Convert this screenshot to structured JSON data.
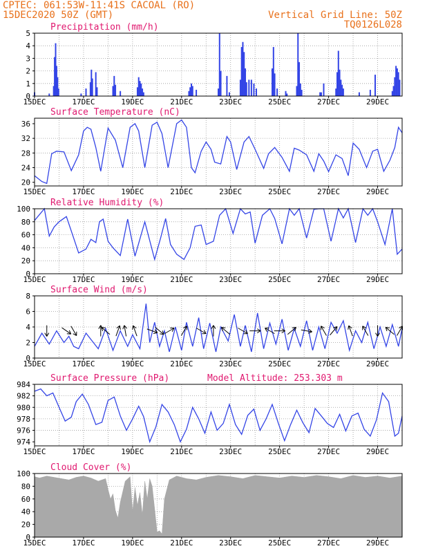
{
  "header": {
    "line1": "CPTEC:   061:53W-11:41S   CACOAL (RO)",
    "line2": "15DEC2020 50Z (GMT)",
    "right1": "Vertical Grid Line: 50Z",
    "right2": "TQ0126L028"
  },
  "colors": {
    "series": "#3344e6",
    "cloud": "#a9a9a9",
    "title": "#e0186f",
    "header": "#e8701a",
    "arrow": "#000000"
  },
  "x_tick_labels": [
    "15DEC",
    "17DEC",
    "19DEC",
    "21DEC",
    "23DEC",
    "25DEC",
    "27DEC",
    "29DEC"
  ],
  "chart_data": [
    {
      "type": "bar",
      "title": "Precipitation (mm/h)",
      "ylim": [
        0,
        5
      ],
      "yticks": [
        "0",
        "1",
        "2",
        "3",
        "4",
        "5"
      ],
      "x_unit": "day index from 15DEC",
      "events": [
        {
          "x": 0.0,
          "v": 0.3
        },
        {
          "x": 0.6,
          "v": 0.2
        },
        {
          "x": 0.78,
          "v": 0.8
        },
        {
          "x": 0.82,
          "v": 3.1
        },
        {
          "x": 0.86,
          "v": 4.2
        },
        {
          "x": 0.9,
          "v": 2.4
        },
        {
          "x": 0.94,
          "v": 1.5
        },
        {
          "x": 0.98,
          "v": 0.6
        },
        {
          "x": 1.9,
          "v": 0.2
        },
        {
          "x": 2.1,
          "v": 0.6
        },
        {
          "x": 2.28,
          "v": 1.1
        },
        {
          "x": 2.32,
          "v": 2.1
        },
        {
          "x": 2.36,
          "v": 1.4
        },
        {
          "x": 2.5,
          "v": 1.9
        },
        {
          "x": 2.55,
          "v": 0.7
        },
        {
          "x": 3.2,
          "v": 0.8
        },
        {
          "x": 3.25,
          "v": 1.6
        },
        {
          "x": 3.3,
          "v": 0.9
        },
        {
          "x": 3.5,
          "v": 0.4
        },
        {
          "x": 4.2,
          "v": 0.7
        },
        {
          "x": 4.25,
          "v": 1.5
        },
        {
          "x": 4.3,
          "v": 1.2
        },
        {
          "x": 4.35,
          "v": 1.0
        },
        {
          "x": 4.4,
          "v": 0.6
        },
        {
          "x": 4.45,
          "v": 0.3
        },
        {
          "x": 6.3,
          "v": 0.4
        },
        {
          "x": 6.35,
          "v": 0.7
        },
        {
          "x": 6.4,
          "v": 1.0
        },
        {
          "x": 6.45,
          "v": 0.8
        },
        {
          "x": 6.6,
          "v": 0.5
        },
        {
          "x": 7.5,
          "v": 0.6
        },
        {
          "x": 7.55,
          "v": 5.0
        },
        {
          "x": 7.6,
          "v": 2.0
        },
        {
          "x": 7.85,
          "v": 1.6
        },
        {
          "x": 7.95,
          "v": 0.3
        },
        {
          "x": 8.4,
          "v": 1.3
        },
        {
          "x": 8.45,
          "v": 3.9
        },
        {
          "x": 8.5,
          "v": 4.3
        },
        {
          "x": 8.55,
          "v": 3.5
        },
        {
          "x": 8.6,
          "v": 2.2
        },
        {
          "x": 8.65,
          "v": 1.1
        },
        {
          "x": 8.75,
          "v": 1.3
        },
        {
          "x": 8.85,
          "v": 1.3
        },
        {
          "x": 8.95,
          "v": 1.0
        },
        {
          "x": 9.05,
          "v": 0.6
        },
        {
          "x": 9.7,
          "v": 2.2
        },
        {
          "x": 9.75,
          "v": 3.9
        },
        {
          "x": 9.8,
          "v": 1.8
        },
        {
          "x": 9.9,
          "v": 0.6
        },
        {
          "x": 10.25,
          "v": 0.4
        },
        {
          "x": 10.3,
          "v": 0.2
        },
        {
          "x": 10.7,
          "v": 0.8
        },
        {
          "x": 10.75,
          "v": 5.0
        },
        {
          "x": 10.8,
          "v": 2.7
        },
        {
          "x": 10.85,
          "v": 1.0
        },
        {
          "x": 10.9,
          "v": 0.5
        },
        {
          "x": 11.65,
          "v": 0.3
        },
        {
          "x": 11.7,
          "v": 0.3
        },
        {
          "x": 11.8,
          "v": 1.0
        },
        {
          "x": 12.3,
          "v": 0.6
        },
        {
          "x": 12.35,
          "v": 1.9
        },
        {
          "x": 12.4,
          "v": 3.6
        },
        {
          "x": 12.45,
          "v": 2.1
        },
        {
          "x": 12.5,
          "v": 1.3
        },
        {
          "x": 12.55,
          "v": 0.9
        },
        {
          "x": 12.6,
          "v": 0.6
        },
        {
          "x": 13.25,
          "v": 0.3
        },
        {
          "x": 13.7,
          "v": 0.5
        },
        {
          "x": 13.9,
          "v": 1.7
        },
        {
          "x": 14.6,
          "v": 0.4
        },
        {
          "x": 14.65,
          "v": 0.8
        },
        {
          "x": 14.7,
          "v": 1.5
        },
        {
          "x": 14.75,
          "v": 2.4
        },
        {
          "x": 14.8,
          "v": 2.2
        },
        {
          "x": 14.85,
          "v": 1.9
        },
        {
          "x": 14.9,
          "v": 1.3
        }
      ]
    },
    {
      "type": "line",
      "title": "Surface Temperature (nC)",
      "ylim": [
        19,
        37.5
      ],
      "yticks": [
        "20",
        "24",
        "28",
        "32",
        "36"
      ],
      "x": [
        0,
        0.3,
        0.5,
        0.7,
        0.9,
        1.2,
        1.5,
        1.8,
        2.0,
        2.15,
        2.3,
        2.5,
        2.7,
        3.0,
        3.3,
        3.6,
        3.9,
        4.1,
        4.25,
        4.5,
        4.8,
        5.0,
        5.2,
        5.45,
        5.8,
        6.0,
        6.2,
        6.4,
        6.55,
        6.8,
        7.0,
        7.2,
        7.35,
        7.6,
        7.85,
        8.0,
        8.25,
        8.55,
        8.75,
        9.0,
        9.35,
        9.55,
        9.8,
        10.1,
        10.4,
        10.6,
        10.8,
        11.1,
        11.4,
        11.6,
        11.8,
        12.0,
        12.3,
        12.55,
        12.8,
        13.0,
        13.25,
        13.55,
        13.8,
        14.0,
        14.25,
        14.5,
        14.7,
        14.85,
        15.0
      ],
      "series": [
        {
          "values": [
            21.8,
            20.2,
            19.7,
            27.8,
            28.5,
            28.3,
            23.2,
            27.5,
            34.0,
            35.0,
            34.5,
            29.5,
            23.0,
            34.8,
            31.5,
            24.0,
            35.0,
            36.0,
            34.0,
            24.0,
            35.6,
            36.4,
            33.3,
            24.0,
            36.0,
            37.0,
            35.0,
            24.0,
            22.6,
            28.5,
            31.0,
            29.0,
            25.5,
            25.0,
            32.5,
            31.0,
            23.5,
            31.0,
            32.5,
            29.0,
            23.8,
            27.8,
            29.5,
            26.8,
            23.0,
            29.3,
            28.8,
            27.5,
            23.0,
            27.8,
            25.8,
            22.9,
            27.5,
            26.5,
            21.8,
            30.7,
            29.0,
            24.0,
            28.5,
            29.0,
            23.0,
            26.0,
            29.5,
            35.0,
            33.5
          ]
        }
      ]
    },
    {
      "type": "line",
      "title": "Relative Humidity (%)",
      "ylim": [
        0,
        100
      ],
      "yticks": [
        "0",
        "20",
        "40",
        "60",
        "80",
        "100"
      ],
      "x": [
        0,
        0.4,
        0.6,
        0.8,
        1.0,
        1.3,
        1.55,
        1.8,
        2.1,
        2.3,
        2.5,
        2.65,
        2.8,
        3.0,
        3.2,
        3.5,
        3.8,
        4.1,
        4.5,
        4.9,
        5.15,
        5.35,
        5.55,
        5.8,
        6.1,
        6.35,
        6.55,
        6.8,
        7.0,
        7.3,
        7.55,
        7.8,
        8.1,
        8.4,
        8.6,
        8.8,
        9.0,
        9.3,
        9.6,
        9.8,
        10.1,
        10.4,
        10.6,
        10.8,
        11.1,
        11.4,
        11.6,
        11.8,
        12.1,
        12.4,
        12.6,
        12.8,
        13.1,
        13.4,
        13.6,
        13.8,
        14.0,
        14.3,
        14.6,
        14.8,
        15.0
      ],
      "series": [
        {
          "values": [
            82,
            100,
            58,
            72,
            80,
            88,
            60,
            32,
            38,
            53,
            48,
            80,
            84,
            50,
            40,
            28,
            84,
            27,
            80,
            22,
            56,
            85,
            45,
            30,
            22,
            40,
            73,
            75,
            45,
            50,
            90,
            100,
            62,
            100,
            92,
            95,
            47,
            90,
            100,
            85,
            46,
            100,
            90,
            100,
            55,
            99,
            100,
            100,
            50,
            100,
            86,
            100,
            48,
            100,
            90,
            100,
            80,
            45,
            100,
            30,
            38
          ]
        }
      ]
    },
    {
      "type": "line",
      "title": "Surface Wind (m/s)",
      "ylim": [
        0,
        8
      ],
      "yticks": [
        "0",
        "2",
        "4",
        "6",
        "8"
      ],
      "x": [
        0,
        0.3,
        0.6,
        0.9,
        1.2,
        1.4,
        1.6,
        1.8,
        2.1,
        2.4,
        2.6,
        2.9,
        3.2,
        3.5,
        3.8,
        4.0,
        4.3,
        4.55,
        4.7,
        4.9,
        5.1,
        5.3,
        5.5,
        5.75,
        6.0,
        6.2,
        6.45,
        6.7,
        6.9,
        7.15,
        7.4,
        7.6,
        7.9,
        8.15,
        8.4,
        8.6,
        8.85,
        9.1,
        9.35,
        9.6,
        9.85,
        10.1,
        10.35,
        10.6,
        10.85,
        11.1,
        11.35,
        11.6,
        11.85,
        12.1,
        12.35,
        12.6,
        12.85,
        13.1,
        13.35,
        13.6,
        13.85,
        14.1,
        14.35,
        14.6,
        14.85,
        15.0
      ],
      "series": [
        {
          "values": [
            1.5,
            3.2,
            1.8,
            3.5,
            2.0,
            2.8,
            1.5,
            1.2,
            3.2,
            2.0,
            1.2,
            3.8,
            1.0,
            3.5,
            1.5,
            3.0,
            1.2,
            7.0,
            2.0,
            4.6,
            1.5,
            3.5,
            0.8,
            4.0,
            1.0,
            4.6,
            1.5,
            5.2,
            1.2,
            4.5,
            0.8,
            4.0,
            2.2,
            5.6,
            1.5,
            4.2,
            0.8,
            5.8,
            1.2,
            4.5,
            1.8,
            5.0,
            1.0,
            3.8,
            1.5,
            4.8,
            1.0,
            4.0,
            1.2,
            4.6,
            3.2,
            4.8,
            1.0,
            3.5,
            2.0,
            4.6,
            1.2,
            4.0,
            1.5,
            4.3,
            1.5,
            3.8
          ]
        }
      ],
      "arrows": [
        {
          "x": 0.5,
          "dir": 90
        },
        {
          "x": 1.3,
          "dir": 35
        },
        {
          "x": 1.6,
          "dir": 60
        },
        {
          "x": 2.7,
          "dir": -90
        },
        {
          "x": 2.9,
          "dir": -140
        },
        {
          "x": 3.4,
          "dir": -70
        },
        {
          "x": 3.7,
          "dir": -100
        },
        {
          "x": 4.1,
          "dir": -110
        },
        {
          "x": 4.8,
          "dir": 20
        },
        {
          "x": 5.1,
          "dir": 40
        },
        {
          "x": 5.5,
          "dir": -30
        },
        {
          "x": 6.1,
          "dir": -60
        },
        {
          "x": 6.8,
          "dir": 30
        },
        {
          "x": 7.3,
          "dir": -90
        },
        {
          "x": 7.8,
          "dir": -140
        },
        {
          "x": 8.5,
          "dir": 30
        },
        {
          "x": 9.0,
          "dir": 0
        },
        {
          "x": 9.6,
          "dir": -150
        },
        {
          "x": 10.0,
          "dir": 0
        },
        {
          "x": 10.5,
          "dir": -40
        },
        {
          "x": 11.1,
          "dir": 10
        },
        {
          "x": 11.8,
          "dir": -120
        },
        {
          "x": 12.2,
          "dir": -50
        },
        {
          "x": 12.9,
          "dir": -110
        },
        {
          "x": 13.5,
          "dir": -120
        },
        {
          "x": 14.0,
          "dir": 90
        },
        {
          "x": 14.5,
          "dir": -140
        },
        {
          "x": 14.9,
          "dir": -60
        }
      ]
    },
    {
      "type": "line",
      "title": "Surface Pressure (hPa)",
      "subtitle": "Model Altitude: 253.303 m",
      "ylim": [
        973.3,
        984
      ],
      "yticks": [
        "974",
        "976",
        "978",
        "980",
        "982",
        "984"
      ],
      "x": [
        0,
        0.25,
        0.5,
        0.75,
        1.0,
        1.25,
        1.5,
        1.7,
        1.95,
        2.2,
        2.5,
        2.75,
        3.0,
        3.25,
        3.5,
        3.75,
        4.0,
        4.25,
        4.45,
        4.7,
        4.95,
        5.2,
        5.45,
        5.7,
        5.95,
        6.2,
        6.45,
        6.7,
        6.95,
        7.2,
        7.45,
        7.7,
        7.95,
        8.2,
        8.45,
        8.7,
        8.95,
        9.2,
        9.45,
        9.7,
        9.95,
        10.2,
        10.45,
        10.7,
        10.95,
        11.2,
        11.45,
        11.7,
        11.95,
        12.2,
        12.45,
        12.7,
        12.95,
        13.2,
        13.45,
        13.7,
        13.95,
        14.2,
        14.45,
        14.7,
        14.85,
        15.0
      ],
      "series": [
        {
          "values": [
            982.8,
            983.2,
            982.0,
            982.5,
            980.0,
            977.6,
            978.3,
            981.0,
            982.3,
            980.5,
            977.0,
            977.4,
            981.2,
            981.8,
            978.5,
            976.0,
            978.0,
            980.2,
            978.4,
            974.0,
            976.6,
            980.5,
            979.2,
            977.0,
            974.0,
            976.2,
            980.0,
            978.0,
            975.5,
            979.2,
            976.0,
            977.2,
            980.5,
            977.0,
            975.3,
            978.6,
            979.7,
            976.0,
            978.0,
            980.5,
            977.2,
            974.2,
            977.0,
            979.5,
            977.3,
            975.6,
            979.8,
            978.5,
            977.2,
            976.5,
            978.8,
            975.9,
            978.5,
            979.0,
            976.2,
            975.0,
            977.8,
            982.5,
            981.0,
            975.0,
            975.5,
            978.5
          ]
        }
      ]
    },
    {
      "type": "area",
      "title": "Cloud Cover (%)",
      "ylim": [
        0,
        100
      ],
      "yticks": [
        "0",
        "20",
        "40",
        "60",
        "80",
        "100"
      ],
      "x": [
        0,
        0.2,
        0.5,
        0.8,
        1.1,
        1.4,
        1.7,
        2.0,
        2.3,
        2.6,
        2.9,
        3.0,
        3.1,
        3.2,
        3.3,
        3.4,
        3.5,
        3.7,
        3.9,
        4.0,
        4.1,
        4.2,
        4.3,
        4.4,
        4.5,
        4.6,
        4.7,
        4.8,
        4.9,
        5.0,
        5.1,
        5.2,
        5.3,
        5.5,
        5.8,
        6.2,
        6.6,
        7.0,
        7.5,
        8.0,
        8.5,
        9.0,
        9.5,
        10.0,
        10.5,
        11.0,
        11.5,
        12.0,
        12.5,
        13.0,
        13.5,
        14.0,
        14.5,
        15.0
      ],
      "series": [
        {
          "values": [
            95,
            93,
            96,
            94,
            92,
            90,
            94,
            96,
            93,
            88,
            92,
            75,
            60,
            68,
            42,
            30,
            55,
            88,
            95,
            40,
            78,
            50,
            70,
            35,
            88,
            60,
            92,
            80,
            45,
            8,
            10,
            5,
            60,
            90,
            96,
            92,
            90,
            94,
            97,
            95,
            92,
            97,
            95,
            93,
            96,
            94,
            97,
            95,
            92,
            97,
            94,
            96,
            93,
            96
          ]
        }
      ]
    }
  ]
}
